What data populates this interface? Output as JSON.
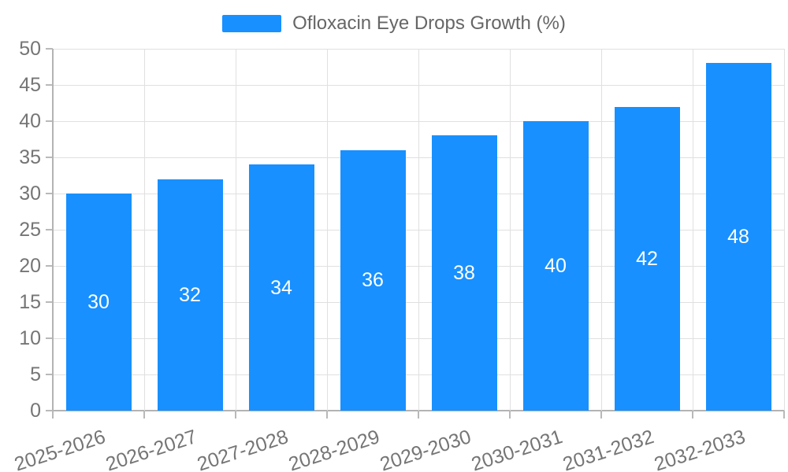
{
  "chart_data": {
    "type": "bar",
    "categories": [
      "2025-2026",
      "2026-2027",
      "2027-2028",
      "2028-2029",
      "2029-2030",
      "2030-2031",
      "2031-2032",
      "2032-2033"
    ],
    "series": [
      {
        "name": "Ofloxacin Eye Drops Growth (%)",
        "values": [
          30,
          32,
          34,
          36,
          38,
          40,
          42,
          48
        ],
        "color": "#1890ff"
      }
    ],
    "title": "",
    "xlabel": "",
    "ylabel": "",
    "ylim": [
      0,
      50
    ],
    "yticks": [
      0,
      5,
      10,
      15,
      20,
      25,
      30,
      35,
      40,
      45,
      50
    ],
    "grid": true,
    "legend_position": "top",
    "x_label_rotation_deg": -18,
    "bar_value_labels_shown": true
  },
  "legend": {
    "label": "Ofloxacin Eye Drops Growth (%)"
  },
  "colors": {
    "bar": "#1890ff",
    "bar_value_label": "#ffffff",
    "grid": "#e0e0e0",
    "axis": "#b3b3b3",
    "tick": "#b9b9b9",
    "tick_label": "#757575",
    "legend_label": "#666666",
    "background": "#ffffff"
  }
}
